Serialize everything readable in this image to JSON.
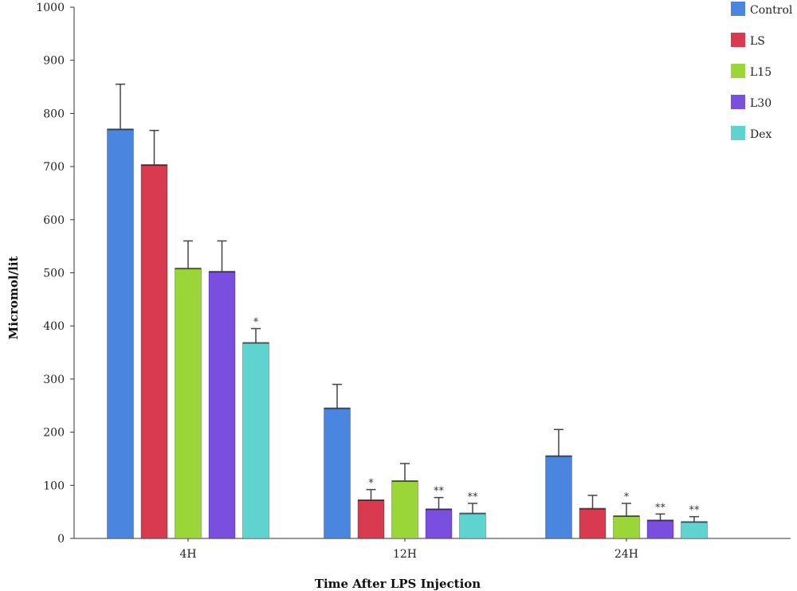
{
  "chart_data": {
    "type": "bar",
    "xlabel": "Time After LPS Injection",
    "ylabel": "Micromol/lit",
    "ylim": [
      0,
      1000
    ],
    "yticks": [
      0,
      100,
      200,
      300,
      400,
      500,
      600,
      700,
      800,
      900,
      1000
    ],
    "categories": [
      "4H",
      "12H",
      "24H"
    ],
    "legend_position": "top-right",
    "grid": false,
    "series": [
      {
        "name": "Control",
        "color": "#4a86e0",
        "values": [
          770,
          245,
          155
        ],
        "errors": [
          85,
          45,
          50
        ],
        "significance": [
          "",
          "",
          ""
        ]
      },
      {
        "name": "LS",
        "color": "#d93a4f",
        "values": [
          703,
          72,
          56
        ],
        "errors": [
          65,
          20,
          25
        ],
        "significance": [
          "",
          "*",
          ""
        ]
      },
      {
        "name": "L15",
        "color": "#9ad638",
        "values": [
          508,
          108,
          42
        ],
        "errors": [
          52,
          33,
          24
        ],
        "significance": [
          "",
          "",
          "*"
        ]
      },
      {
        "name": "L30",
        "color": "#7a4fe0",
        "values": [
          502,
          55,
          34
        ],
        "errors": [
          58,
          22,
          12
        ],
        "significance": [
          "",
          "**",
          "**"
        ]
      },
      {
        "name": "Dex",
        "color": "#5fd3d0",
        "values": [
          368,
          47,
          31
        ],
        "errors": [
          27,
          19,
          10
        ],
        "significance": [
          "*",
          "**",
          "**"
        ]
      }
    ]
  }
}
